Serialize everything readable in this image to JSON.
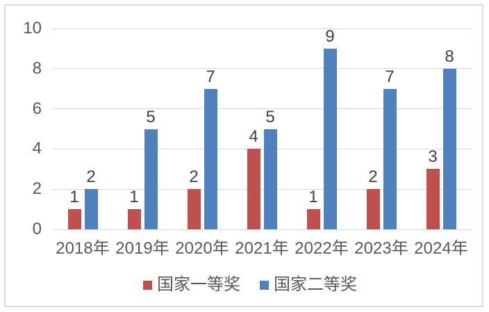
{
  "chart_data": {
    "type": "bar",
    "title": "",
    "categories": [
      "2018年",
      "2019年",
      "2020年",
      "2021年",
      "2022年",
      "2023年",
      "2024年"
    ],
    "series": [
      {
        "name": "国家一等奖",
        "color": "#C0504D",
        "values": [
          1,
          1,
          2,
          4,
          1,
          2,
          3
        ]
      },
      {
        "name": "国家二等奖",
        "color": "#4F81BD",
        "values": [
          2,
          5,
          7,
          5,
          9,
          7,
          8
        ]
      }
    ],
    "y_ticks": [
      0,
      2,
      4,
      6,
      8,
      10
    ],
    "ylim": [
      0,
      10
    ],
    "grid": true,
    "data_labels": true,
    "legend_position": "bottom"
  },
  "colors": {
    "background": "#FFFFFF",
    "frame_border": "#D9D9D9",
    "gridline": "#D9D9D9",
    "axis_text": "#595959",
    "data_label_text": "#404040",
    "legend_text": "#595959"
  }
}
